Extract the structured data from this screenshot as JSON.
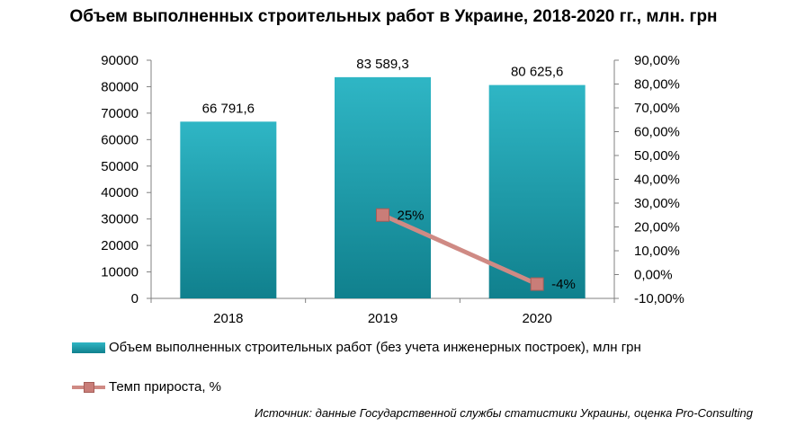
{
  "title": "Объем выполненных строительных работ в Украине, 2018-2020 гг., млн. грн",
  "source": "Источник: данные Государственной службы статистики Украины, оценка Pro-Consulting",
  "colors": {
    "bar_top": "#2fb6c5",
    "bar_bottom": "#10808d",
    "line": "#cf8a84",
    "marker": "#c97d78"
  },
  "chart_data": {
    "type": "bar",
    "title": "Объем выполненных строительных работ в Украине, 2018-2020 гг., млн. грн",
    "categories": [
      "2018",
      "2019",
      "2020"
    ],
    "series": [
      {
        "name": "Объем выполненных строительных работ (без учета инженерных построек), млн грн",
        "type": "bar",
        "axis": "left",
        "values": [
          66791.6,
          83589.3,
          80625.6
        ],
        "data_labels": [
          "66 791,6",
          "83 589,3",
          "80 625,6"
        ]
      },
      {
        "name": "Темп прироста, %",
        "type": "line",
        "axis": "right",
        "values": [
          null,
          25,
          -4
        ],
        "data_labels": [
          "",
          "25%",
          "-4%"
        ]
      }
    ],
    "y_left": {
      "ylim": [
        0,
        90000
      ],
      "ticks": [
        "0",
        "10000",
        "20000",
        "30000",
        "40000",
        "50000",
        "60000",
        "70000",
        "80000",
        "90000"
      ]
    },
    "y_right": {
      "ylim": [
        -10,
        90
      ],
      "ticks": [
        "-10,00%",
        "0,00%",
        "10,00%",
        "20,00%",
        "30,00%",
        "40,00%",
        "50,00%",
        "60,00%",
        "70,00%",
        "80,00%",
        "90,00%"
      ]
    },
    "grid": false,
    "legend": "bottom"
  }
}
